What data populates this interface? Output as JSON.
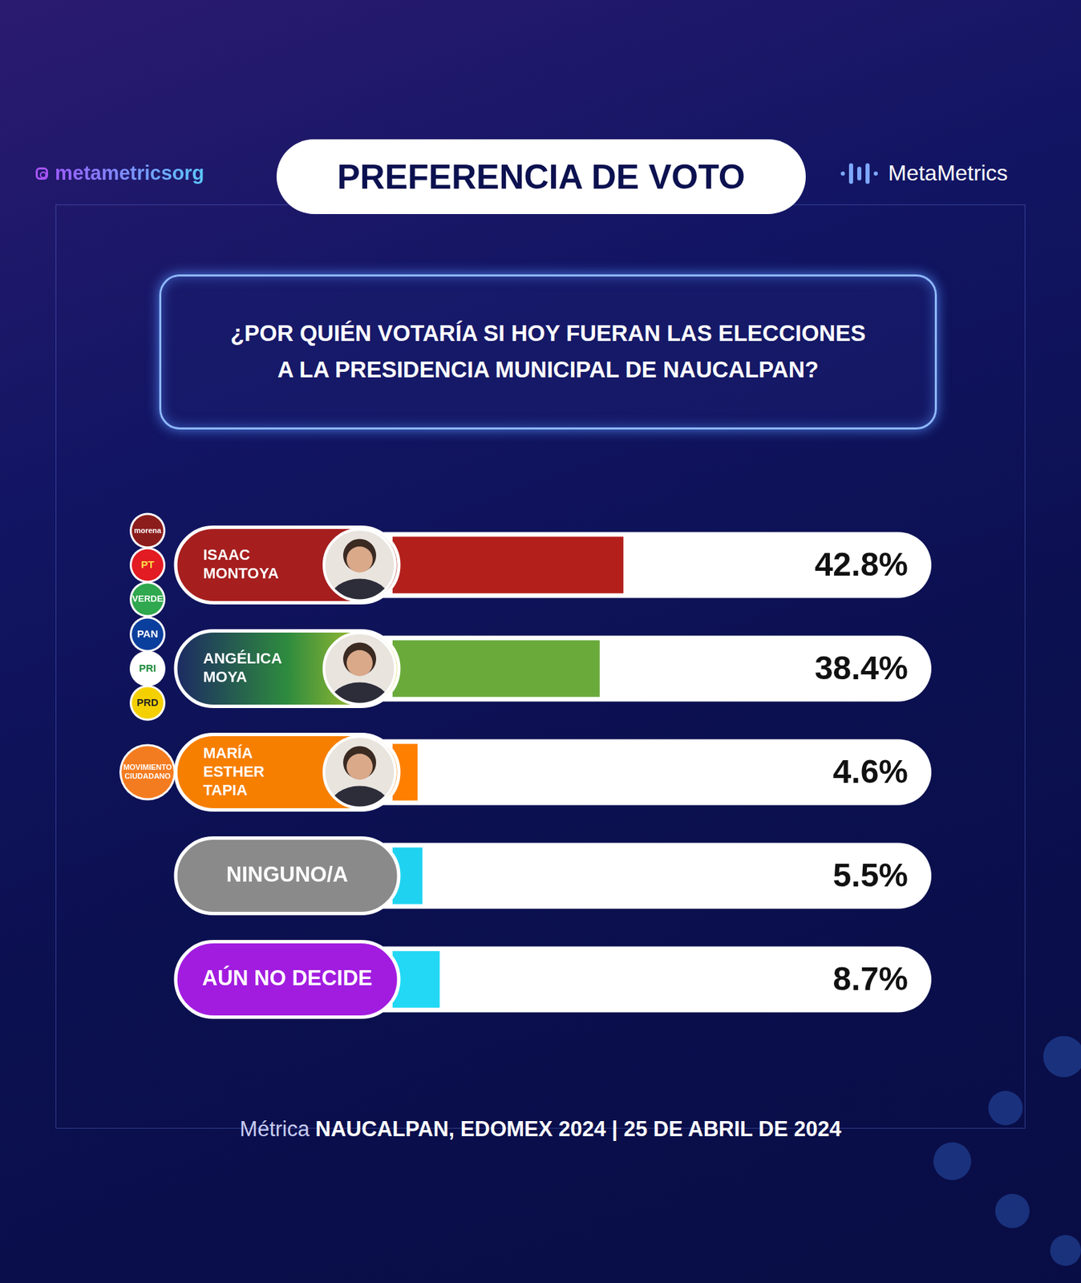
{
  "header": {
    "handle": "metametricsorg",
    "title": "PREFERENCIA DE VOTO",
    "brand": "MetaMetrics"
  },
  "question": [
    "¿POR QUIÉN VOTARÍA SI HOY FUERAN LAS ELECCIONES",
    "A LA PRESIDENCIA MUNICIPAL DE NAUCALPAN?"
  ],
  "chart_data": {
    "type": "bar",
    "orientation": "horizontal",
    "categories": [
      "ISAAC MONTOYA",
      "ANGÉLICA MOYA",
      "MARÍA ESTHER TAPIA",
      "NINGUNO/A",
      "AÚN NO DECIDE"
    ],
    "values": [
      42.8,
      38.4,
      4.6,
      5.5,
      8.7
    ],
    "value_labels": [
      "42.8%",
      "38.4%",
      "4.6%",
      "5.5%",
      "8.7%"
    ],
    "colors": [
      "#b3201c",
      "#6aaa3a",
      "#ff7f00",
      "#1fd3f0",
      "#22d8f5"
    ],
    "parties": [
      [
        "morena",
        "PT",
        "VERDE"
      ],
      [
        "PAN",
        "PRI",
        "PRD"
      ],
      [
        "MOVIMIENTO CIUDADANO"
      ],
      null,
      null
    ],
    "xlim": [
      0,
      100
    ],
    "tick_labels": false,
    "grid": false,
    "data_labels": true
  },
  "footer": {
    "label": "Métrica",
    "text": "NAUCALPAN, EDOMEX 2024 | 25 DE ABRIL DE 2024"
  }
}
